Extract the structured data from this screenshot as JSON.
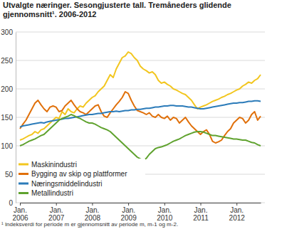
{
  "chart_data": {
    "type": "line",
    "title": "Utvalgte næringer. Sesongjusterte tall. Tremåneders glidende\ngjennomsnitt¹. 2006-2012",
    "footnote": "¹ Indeksverdi for periode m er gjennomsnitt av periode m, m-1 og m-2.",
    "categories": [
      "Jan.\n2006",
      null,
      null,
      null,
      null,
      null,
      null,
      null,
      null,
      null,
      null,
      null,
      "Jan.\n2007",
      null,
      null,
      null,
      null,
      null,
      null,
      null,
      null,
      null,
      null,
      null,
      "Jan.\n2008",
      null,
      null,
      null,
      null,
      null,
      null,
      null,
      null,
      null,
      null,
      null,
      "Jan.\n2009",
      null,
      null,
      null,
      null,
      null,
      null,
      null,
      null,
      null,
      null,
      null,
      "Jan.\n2010",
      null,
      null,
      null,
      null,
      null,
      null,
      null,
      null,
      null,
      null,
      null,
      "Jan.\n2011",
      null,
      null,
      null,
      null,
      null,
      null,
      null,
      null,
      null,
      null,
      null,
      "Jan.\n2012",
      null,
      null,
      null,
      null,
      null,
      null,
      null,
      null
    ],
    "series": [
      {
        "name": "Maskinindustri",
        "color": "#f2c61f",
        "values": [
          110,
          112,
          115,
          118,
          120,
          125,
          122,
          128,
          130,
          135,
          140,
          145,
          150,
          148,
          160,
          155,
          165,
          160,
          158,
          165,
          170,
          168,
          175,
          180,
          185,
          188,
          195,
          200,
          205,
          215,
          225,
          220,
          235,
          245,
          255,
          258,
          265,
          262,
          255,
          250,
          240,
          235,
          232,
          228,
          230,
          225,
          215,
          210,
          212,
          208,
          205,
          200,
          198,
          195,
          192,
          190,
          185,
          180,
          172,
          165,
          168,
          170,
          172,
          175,
          178,
          180,
          182,
          185,
          187,
          190,
          192,
          195,
          198,
          200,
          205,
          208,
          212,
          210,
          215,
          218,
          225
        ]
      },
      {
        "name": "Bygging av skip og plattformer",
        "color": "#e0700a",
        "values": [
          130,
          138,
          145,
          155,
          165,
          175,
          180,
          172,
          165,
          160,
          168,
          170,
          168,
          160,
          162,
          170,
          175,
          180,
          172,
          165,
          160,
          158,
          155,
          160,
          165,
          170,
          172,
          160,
          152,
          150,
          158,
          165,
          172,
          178,
          185,
          195,
          192,
          180,
          170,
          162,
          160,
          158,
          155,
          158,
          152,
          150,
          155,
          150,
          148,
          152,
          145,
          150,
          148,
          140,
          145,
          150,
          142,
          135,
          130,
          125,
          120,
          125,
          128,
          120,
          108,
          105,
          107,
          110,
          118,
          125,
          130,
          140,
          145,
          150,
          148,
          140,
          145,
          155,
          160,
          145,
          152
        ]
      },
      {
        "name": "Næringsmiddelindustri",
        "color": "#2b7bb9",
        "values": [
          133,
          135,
          136,
          137,
          138,
          139,
          140,
          141,
          140,
          142,
          143,
          144,
          145,
          146,
          147,
          148,
          148,
          149,
          150,
          151,
          152,
          153,
          154,
          155,
          155,
          156,
          157,
          157,
          158,
          159,
          160,
          160,
          161,
          160,
          161,
          162,
          162,
          163,
          163,
          164,
          164,
          165,
          166,
          166,
          167,
          168,
          168,
          169,
          170,
          170,
          171,
          171,
          170,
          170,
          170,
          169,
          168,
          168,
          167,
          166,
          165,
          165,
          166,
          167,
          168,
          169,
          170,
          171,
          172,
          173,
          174,
          175,
          175,
          176,
          176,
          177,
          178,
          178,
          179,
          179,
          178
        ]
      },
      {
        "name": "Metallindustri",
        "color": "#5fa22e",
        "values": [
          100,
          102,
          105,
          108,
          110,
          112,
          115,
          118,
          120,
          125,
          130,
          135,
          140,
          145,
          148,
          150,
          152,
          155,
          153,
          150,
          148,
          145,
          142,
          140,
          140,
          138,
          135,
          132,
          130,
          128,
          125,
          120,
          115,
          110,
          105,
          100,
          95,
          90,
          85,
          80,
          77,
          75,
          78,
          85,
          90,
          95,
          97,
          98,
          100,
          102,
          105,
          108,
          110,
          112,
          115,
          118,
          120,
          122,
          124,
          125,
          125,
          124,
          122,
          120,
          118,
          118,
          117,
          116,
          115,
          114,
          113,
          112,
          112,
          111,
          110,
          110,
          108,
          106,
          105,
          102,
          100
        ]
      }
    ],
    "ylim": [
      0,
      300
    ],
    "yticks": [
      0,
      50,
      100,
      150,
      200,
      250,
      300
    ],
    "grid": true,
    "legend": "lower left"
  }
}
